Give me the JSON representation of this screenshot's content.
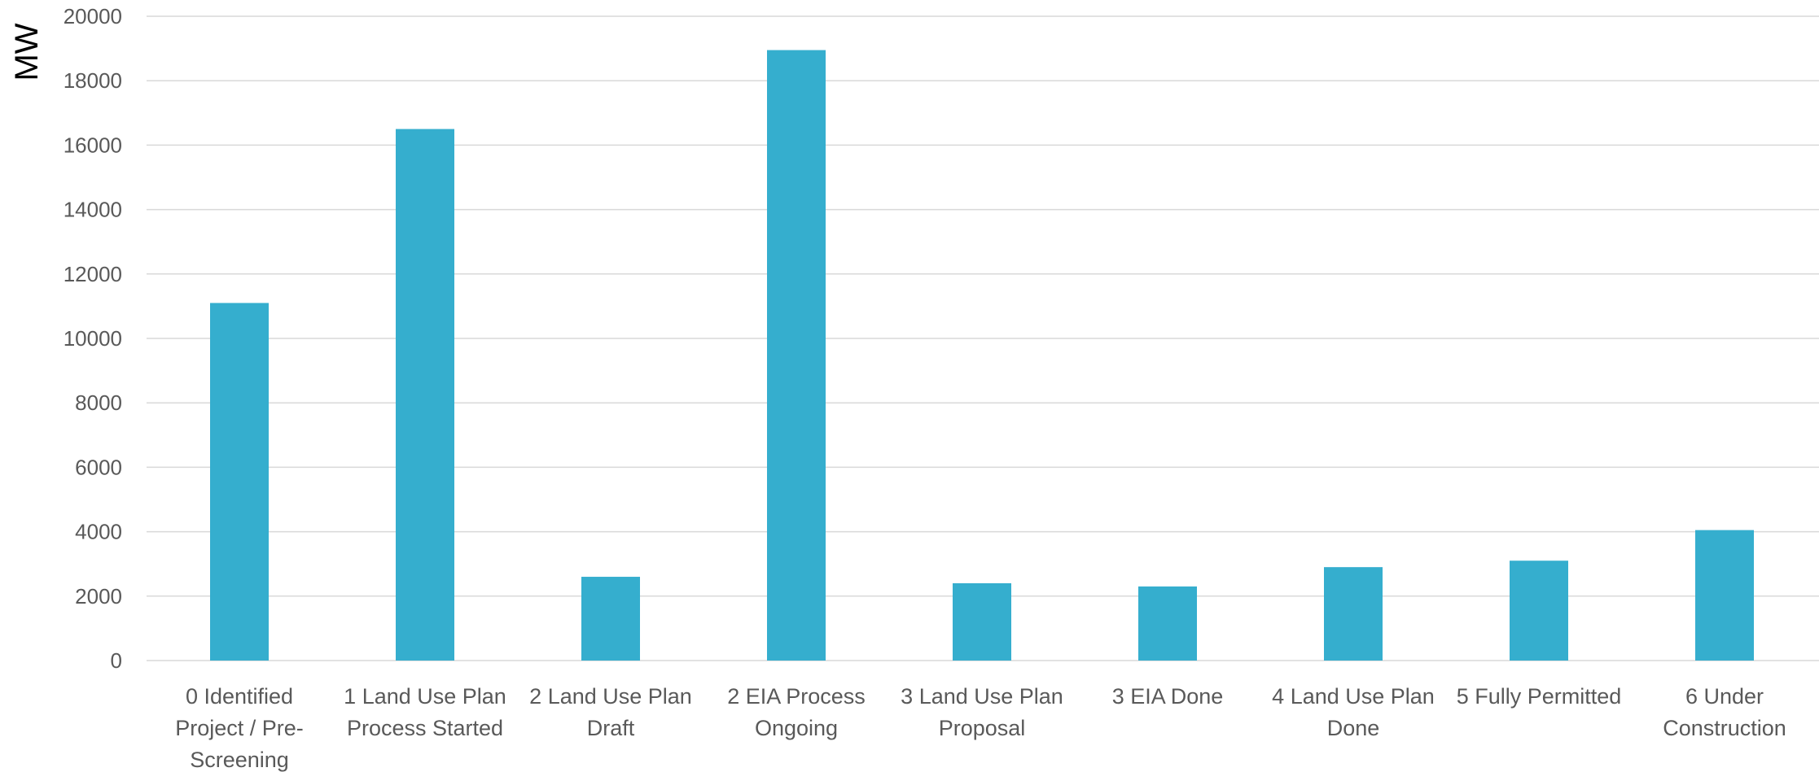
{
  "chart_data": {
    "type": "bar",
    "title": "",
    "xlabel": "",
    "ylabel": "MW",
    "ylim": [
      0,
      20000
    ],
    "yticks": [
      0,
      2000,
      4000,
      6000,
      8000,
      10000,
      12000,
      14000,
      16000,
      18000,
      20000
    ],
    "grid": true,
    "legend": "none",
    "bar_color": "#35AECE",
    "categories": [
      "0 Identified Project / Pre-Screening",
      "1 Land Use Plan Process Started",
      "2 Land Use Plan Draft",
      "2 EIA Process Ongoing",
      "3 Land Use Plan Proposal",
      "3 EIA Done",
      "4 Land Use Plan Done",
      "5 Fully Permitted",
      "6 Under Construction"
    ],
    "category_lines": [
      [
        "0 Identified",
        "Project / Pre-",
        "Screening"
      ],
      [
        "1 Land Use Plan",
        "Process Started"
      ],
      [
        "2 Land Use Plan",
        "Draft"
      ],
      [
        "2 EIA Process",
        "Ongoing"
      ],
      [
        "3 Land Use Plan",
        "Proposal"
      ],
      [
        "3 EIA Done"
      ],
      [
        "4 Land Use Plan",
        "Done"
      ],
      [
        "5 Fully Permitted"
      ],
      [
        "6 Under",
        "Construction"
      ]
    ],
    "values": [
      11100,
      16500,
      2600,
      18950,
      2400,
      2300,
      2900,
      3100,
      4050
    ]
  }
}
